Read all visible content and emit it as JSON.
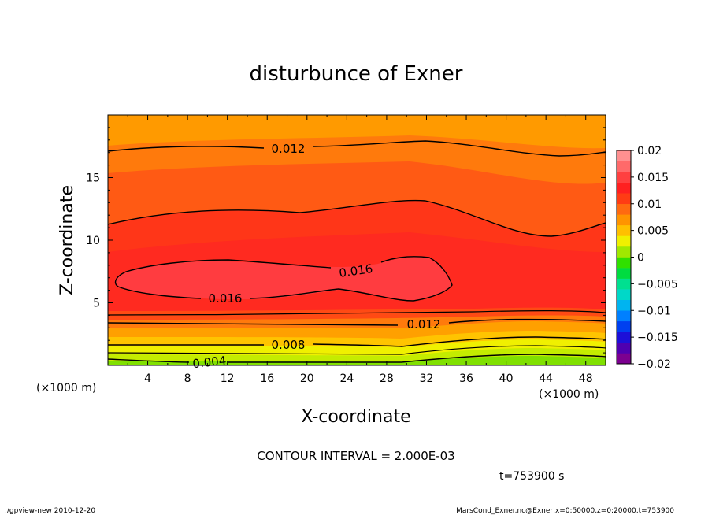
{
  "chart_data": {
    "type": "heatmap",
    "title": "disturbunce of Exner",
    "xlabel": "X-coordinate",
    "ylabel": "Z-coordinate",
    "x_unit": "(×1000 m)",
    "y_unit": "(×1000 m)",
    "xlim": [
      0,
      50
    ],
    "ylim": [
      0,
      20
    ],
    "x_ticks": [
      4,
      8,
      12,
      16,
      20,
      24,
      28,
      32,
      36,
      40,
      44,
      48
    ],
    "y_ticks": [
      5,
      10,
      15
    ],
    "contour_interval_text": "CONTOUR INTERVAL = 2.000E-03",
    "time_text": "t=753900 s",
    "colorbar": {
      "range": [
        -0.02,
        0.02
      ],
      "ticks": [
        "0.02",
        "0.015",
        "0.01",
        "0.005",
        "0",
        "−0.005",
        "−0.01",
        "−0.015",
        "−0.02"
      ],
      "colors": [
        "#7c0090",
        "#4f00b0",
        "#1c10d8",
        "#0040f0",
        "#0080ff",
        "#00b4f0",
        "#00d8c8",
        "#00e090",
        "#00dc40",
        "#30e000",
        "#a0e800",
        "#f0f000",
        "#ffc000",
        "#ff9400",
        "#ff6a10",
        "#ff3c14",
        "#ff2020",
        "#ff4040",
        "#ff6a6a",
        "#ff9090"
      ]
    },
    "contour_labels": [
      {
        "text": "0.012",
        "x": 18,
        "z": 17.3
      },
      {
        "text": "0.016",
        "x": 25,
        "z": 7.3
      },
      {
        "text": "0.016",
        "x": 11.5,
        "z": 5.3
      },
      {
        "text": "0.012",
        "x": 32,
        "z": 3.2
      },
      {
        "text": "0.008",
        "x": 18,
        "z": 1.6
      },
      {
        "text": "0.004",
        "x": 8.5,
        "z": 0.1
      }
    ],
    "contour_levels": [
      0.004,
      0.008,
      0.012,
      0.016
    ]
  },
  "footer": {
    "left": "./gpview-new   2010-12-20",
    "right": "MarsCond_Exner.nc@Exner,x=0:50000,z=0:20000,t=753900"
  }
}
